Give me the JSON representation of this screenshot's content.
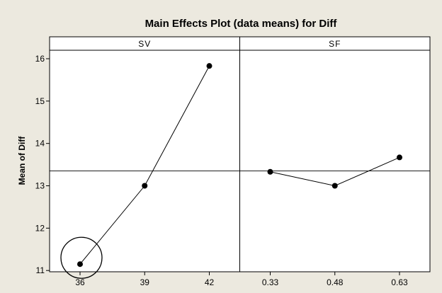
{
  "chart_data": {
    "type": "line",
    "title": "Main Effects Plot (data means) for Diff",
    "ylabel": "Mean of Diff",
    "ylim": [
      10.97,
      16.2
    ],
    "yticks": [
      11,
      12,
      13,
      14,
      15,
      16
    ],
    "grand_mean": 13.35,
    "panels": [
      {
        "name": "SV",
        "categories": [
          "36",
          "39",
          "42"
        ],
        "values": [
          11.15,
          13.0,
          15.83
        ],
        "highlight_index": 0
      },
      {
        "name": "SF",
        "categories": [
          "0.33",
          "0.48",
          "0.63"
        ],
        "values": [
          13.33,
          13.0,
          13.67
        ]
      }
    ],
    "grid": false,
    "legend": "none",
    "colors": {
      "background": "#ECE9DF",
      "plot_area": "#FFFFFF",
      "line": "#000000"
    }
  }
}
